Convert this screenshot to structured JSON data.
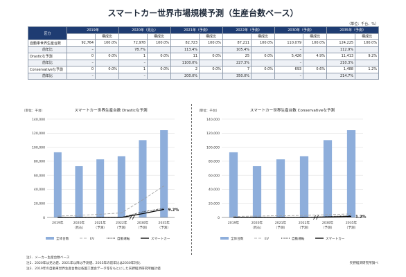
{
  "title": "スマートカー世界市場規模予測（生産台数ベース）",
  "unit": "（単位：千台、%）",
  "table": {
    "corner": "区分",
    "share_label": "構成比",
    "years": [
      "2019年",
      "2020年（見込）",
      "2021年（予測）",
      "2022年（予測）",
      "2030年（予測）",
      "2035年（予測）"
    ],
    "rows": [
      {
        "label": "自動車世界生産台数",
        "values": [
          "92,764",
          "72,978",
          "82,723",
          "87,211",
          "110,079",
          "124,225"
        ],
        "shares": [
          "100.0%",
          "100.0%",
          "100.0%",
          "100.0%",
          "100.0%",
          "100.0%"
        ],
        "yoy_label": "前年比",
        "yoy": [
          "–",
          "78.7%",
          "113.4%",
          "105.4%",
          "–",
          "112.9%"
        ]
      },
      {
        "label": "Drasticな予測",
        "values": [
          "0",
          "1",
          "11",
          "25",
          "5,426",
          "11,413"
        ],
        "shares": [
          "0.0%",
          "0.0%",
          "0.0%",
          "0.0%",
          "4.9%",
          "9.2%"
        ],
        "yoy_label": "前年比",
        "yoy": [
          "–",
          "–",
          "1100.0%",
          "227.3%",
          "–",
          "210.3%"
        ]
      },
      {
        "label": "Conservativeな予測",
        "values": [
          "0",
          "1",
          "2",
          "7",
          "693",
          "1,488"
        ],
        "shares": [
          "0.0%",
          "0.0%",
          "0.0%",
          "0.0%",
          "0.6%",
          "1.2%"
        ],
        "yoy_label": "前年比",
        "yoy": [
          "–",
          "–",
          "200.0%",
          "350.0%",
          "–",
          "214.7%"
        ]
      }
    ]
  },
  "chart_data": [
    {
      "type": "bar",
      "title": "スマートカー世界生産台数 Drasticな予測",
      "unit_label": "（単位：千台）",
      "categories": [
        "2019年",
        "2020年\n（見込）",
        "2021年\n（予測）",
        "2022年\n（予測）",
        "2030年\n（予測）",
        "2035年\n（予測）"
      ],
      "ylim": [
        0,
        140000
      ],
      "yticks": [
        "0",
        "20,000",
        "40,000",
        "60,000",
        "80,000",
        "100,000",
        "120,000",
        "140,000"
      ],
      "series": [
        {
          "name": "全体台数",
          "kind": "bar",
          "color": "#8eaedb",
          "values": [
            92764,
            72978,
            82723,
            87211,
            110079,
            124225
          ]
        },
        {
          "name": "EV",
          "kind": "line",
          "style": "dashed",
          "color": "#9a9a9a",
          "values": [
            2000,
            3000,
            4500,
            6500,
            25000,
            45000
          ]
        },
        {
          "name": "自動運転",
          "kind": "line",
          "style": "dotted",
          "color": "#333333",
          "values": [
            0,
            1,
            11,
            25,
            8000,
            13000
          ]
        },
        {
          "name": "スマートカー",
          "kind": "line",
          "style": "solid",
          "color": "#000000",
          "values": [
            0,
            1,
            11,
            25,
            5426,
            11413
          ]
        }
      ],
      "annotation": "9.2%",
      "legend_position": "bottom"
    },
    {
      "type": "bar",
      "title": "スマートカー世界生産台数 Conservativeな予測",
      "unit_label": "（単位：千台）",
      "categories": [
        "2019年",
        "2020年\n（見込）",
        "2021年\n（予測）",
        "2022年\n（予測）",
        "2030年\n（予測）",
        "2035年\n（予測）"
      ],
      "ylim": [
        0,
        140000
      ],
      "yticks": [
        "0",
        "20,000",
        "40,000",
        "60,000",
        "80,000",
        "100,000",
        "120,000",
        "140,000"
      ],
      "series": [
        {
          "name": "全体台数",
          "kind": "bar",
          "color": "#8eaedb",
          "values": [
            92764,
            72978,
            82723,
            87211,
            110079,
            124225
          ]
        },
        {
          "name": "EV",
          "kind": "line",
          "style": "dashed",
          "color": "#9a9a9a",
          "values": [
            1500,
            2000,
            2500,
            3000,
            4000,
            5000
          ]
        },
        {
          "name": "自動運転",
          "kind": "line",
          "style": "dotted",
          "color": "#333333",
          "values": [
            0,
            1,
            2,
            7,
            1200,
            2500
          ]
        },
        {
          "name": "スマートカー",
          "kind": "line",
          "style": "solid",
          "color": "#000000",
          "values": [
            0,
            1,
            2,
            7,
            693,
            1488
          ]
        }
      ],
      "annotation": "1.2%",
      "legend_position": "bottom"
    }
  ],
  "notes": [
    "注1．メーカー生産台数ベース",
    "注2．2020年は見込値、2021年以降は予測値、2035年の前年比は2030年対比",
    "注3．2019年の自動車世界生産台数は各国工業会データ等をもとにした矢野経済研究所推計値"
  ],
  "source": "矢野経済研究所調べ"
}
